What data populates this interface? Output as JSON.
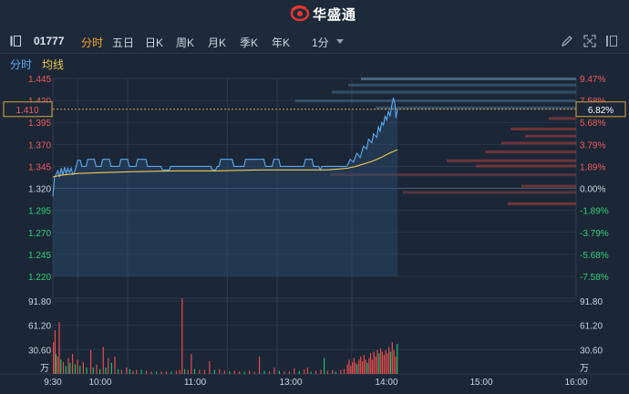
{
  "header": {
    "brand_name": "华盛通",
    "brand_color": "#e8382f"
  },
  "toolbar": {
    "stock_code": "01777",
    "tabs": [
      {
        "label": "分时",
        "active": true
      },
      {
        "label": "五日",
        "active": false
      },
      {
        "label": "日K",
        "active": false
      },
      {
        "label": "周K",
        "active": false
      },
      {
        "label": "月K",
        "active": false
      },
      {
        "label": "季K",
        "active": false
      },
      {
        "label": "年K",
        "active": false
      }
    ],
    "interval": "1分",
    "icons": [
      "collapse-panel-icon",
      "pencil-icon",
      "expand-icon",
      "fullscreen-icon"
    ]
  },
  "legend": {
    "price_label": "分时",
    "avg_label": "均线",
    "price_color": "#5aa9f0",
    "avg_color": "#f2c94c"
  },
  "chart_data": {
    "type": "line",
    "price_axis": {
      "ticks": [
        "1.445",
        "1.420",
        "1.395",
        "1.370",
        "1.345",
        "1.320",
        "1.295",
        "1.270",
        "1.245",
        "1.220"
      ],
      "ylim": [
        1.22,
        1.445
      ],
      "prev_close": 1.32
    },
    "pct_axis": {
      "ticks": [
        "9.47%",
        "7.58%",
        "5.68%",
        "3.79%",
        "1.89%",
        "0.00%",
        "-1.89%",
        "-3.79%",
        "-5.68%",
        "-7.58%"
      ]
    },
    "current": {
      "price": "1.410",
      "pct": "6.82%"
    },
    "time_ticks": [
      "9:30",
      "10:00",
      "11:00",
      "13:00",
      "14:00",
      "15:00",
      "16:00"
    ],
    "price_series": {
      "name": "分时",
      "points": [
        [
          0,
          1.311
        ],
        [
          2,
          1.333
        ],
        [
          4,
          1.336
        ],
        [
          6,
          1.34
        ],
        [
          8,
          1.333
        ],
        [
          10,
          1.343
        ],
        [
          12,
          1.335
        ],
        [
          14,
          1.344
        ],
        [
          16,
          1.337
        ],
        [
          18,
          1.343
        ],
        [
          20,
          1.338
        ],
        [
          22,
          1.343
        ],
        [
          24,
          1.336
        ],
        [
          26,
          1.338
        ],
        [
          28,
          1.345
        ],
        [
          30,
          1.352
        ],
        [
          33,
          1.352
        ],
        [
          35,
          1.345
        ],
        [
          40,
          1.345
        ],
        [
          42,
          1.353
        ],
        [
          50,
          1.353
        ],
        [
          52,
          1.345
        ],
        [
          58,
          1.345
        ],
        [
          60,
          1.353
        ],
        [
          68,
          1.353
        ],
        [
          70,
          1.345
        ],
        [
          80,
          1.345
        ],
        [
          82,
          1.353
        ],
        [
          90,
          1.353
        ],
        [
          92,
          1.345
        ],
        [
          100,
          1.345
        ],
        [
          102,
          1.353
        ],
        [
          112,
          1.353
        ],
        [
          114,
          1.345
        ],
        [
          130,
          1.345
        ],
        [
          132,
          1.341
        ],
        [
          140,
          1.341
        ],
        [
          142,
          1.345
        ],
        [
          190,
          1.345
        ],
        [
          192,
          1.341
        ],
        [
          196,
          1.341
        ],
        [
          198,
          1.345
        ],
        [
          200,
          1.345
        ],
        [
          202,
          1.353
        ],
        [
          216,
          1.353
        ],
        [
          218,
          1.345
        ],
        [
          230,
          1.345
        ],
        [
          232,
          1.353
        ],
        [
          254,
          1.353
        ],
        [
          256,
          1.345
        ],
        [
          264,
          1.345
        ],
        [
          266,
          1.353
        ],
        [
          272,
          1.353
        ],
        [
          274,
          1.345
        ],
        [
          302,
          1.345
        ],
        [
          304,
          1.353
        ],
        [
          312,
          1.353
        ],
        [
          314,
          1.345
        ],
        [
          320,
          1.345
        ],
        [
          322,
          1.341
        ],
        [
          324,
          1.345
        ],
        [
          350,
          1.345
        ],
        [
          354,
          1.345
        ],
        [
          358,
          1.353
        ],
        [
          362,
          1.35
        ],
        [
          366,
          1.36
        ],
        [
          370,
          1.355
        ],
        [
          374,
          1.368
        ],
        [
          378,
          1.365
        ],
        [
          380,
          1.376
        ],
        [
          384,
          1.372
        ],
        [
          386,
          1.382
        ],
        [
          390,
          1.378
        ],
        [
          392,
          1.39
        ],
        [
          394,
          1.385
        ],
        [
          396,
          1.395
        ],
        [
          398,
          1.392
        ],
        [
          400,
          1.402
        ],
        [
          402,
          1.398
        ],
        [
          404,
          1.408
        ],
        [
          406,
          1.402
        ],
        [
          408,
          1.414
        ],
        [
          410,
          1.423
        ],
        [
          412,
          1.415
        ],
        [
          413,
          1.4
        ],
        [
          414,
          1.405
        ],
        [
          415,
          1.41
        ]
      ]
    },
    "avg_series": {
      "name": "均线",
      "points": [
        [
          0,
          1.333
        ],
        [
          10,
          1.335
        ],
        [
          30,
          1.337
        ],
        [
          60,
          1.338
        ],
        [
          100,
          1.339
        ],
        [
          150,
          1.34
        ],
        [
          200,
          1.34
        ],
        [
          250,
          1.341
        ],
        [
          300,
          1.341
        ],
        [
          330,
          1.341
        ],
        [
          345,
          1.342
        ],
        [
          355,
          1.343
        ],
        [
          365,
          1.345
        ],
        [
          375,
          1.348
        ],
        [
          385,
          1.351
        ],
        [
          395,
          1.355
        ],
        [
          405,
          1.36
        ],
        [
          415,
          1.364
        ]
      ]
    },
    "volume_axis": {
      "ticks": [
        "91.80",
        "61.20",
        "30.60"
      ],
      "unit": "万",
      "ylim": [
        0,
        91.8
      ]
    },
    "volume_series": [
      [
        0,
        40,
        "u"
      ],
      [
        2,
        55,
        "u"
      ],
      [
        3,
        25,
        "d"
      ],
      [
        5,
        22,
        "u"
      ],
      [
        7,
        65,
        "u"
      ],
      [
        9,
        18,
        "d"
      ],
      [
        12,
        15,
        "u"
      ],
      [
        15,
        10,
        "d"
      ],
      [
        18,
        20,
        "u"
      ],
      [
        20,
        14,
        "d"
      ],
      [
        23,
        25,
        "u"
      ],
      [
        26,
        12,
        "d"
      ],
      [
        29,
        18,
        "u"
      ],
      [
        32,
        10,
        "d"
      ],
      [
        36,
        15,
        "u"
      ],
      [
        40,
        8,
        "d"
      ],
      [
        45,
        30,
        "u"
      ],
      [
        48,
        8,
        "d"
      ],
      [
        52,
        12,
        "u"
      ],
      [
        56,
        6,
        "d"
      ],
      [
        60,
        34,
        "u"
      ],
      [
        63,
        8,
        "d"
      ],
      [
        66,
        20,
        "u"
      ],
      [
        70,
        14,
        "d"
      ],
      [
        74,
        22,
        "u"
      ],
      [
        78,
        6,
        "d"
      ],
      [
        82,
        5,
        "u"
      ],
      [
        88,
        8,
        "u"
      ],
      [
        92,
        6,
        "d"
      ],
      [
        96,
        4,
        "u"
      ],
      [
        100,
        5,
        "u"
      ],
      [
        106,
        5,
        "d"
      ],
      [
        112,
        4,
        "u"
      ],
      [
        118,
        3,
        "u"
      ],
      [
        124,
        3,
        "d"
      ],
      [
        130,
        3,
        "u"
      ],
      [
        136,
        3,
        "u"
      ],
      [
        142,
        3,
        "d"
      ],
      [
        148,
        4,
        "u"
      ],
      [
        152,
        5,
        "u"
      ],
      [
        155,
        95,
        "u"
      ],
      [
        158,
        6,
        "d"
      ],
      [
        162,
        5,
        "u"
      ],
      [
        166,
        25,
        "u"
      ],
      [
        170,
        6,
        "d"
      ],
      [
        176,
        5,
        "u"
      ],
      [
        182,
        5,
        "u"
      ],
      [
        188,
        16,
        "u"
      ],
      [
        194,
        5,
        "d"
      ],
      [
        200,
        6,
        "u"
      ],
      [
        206,
        4,
        "u"
      ],
      [
        212,
        3,
        "d"
      ],
      [
        218,
        4,
        "u"
      ],
      [
        224,
        3,
        "u"
      ],
      [
        230,
        3,
        "d"
      ],
      [
        236,
        4,
        "u"
      ],
      [
        242,
        3,
        "u"
      ],
      [
        248,
        22,
        "u"
      ],
      [
        254,
        4,
        "d"
      ],
      [
        260,
        3,
        "u"
      ],
      [
        266,
        8,
        "u"
      ],
      [
        272,
        4,
        "d"
      ],
      [
        278,
        3,
        "u"
      ],
      [
        284,
        3,
        "u"
      ],
      [
        290,
        7,
        "u"
      ],
      [
        296,
        4,
        "d"
      ],
      [
        302,
        6,
        "u"
      ],
      [
        306,
        8,
        "u"
      ],
      [
        310,
        3,
        "d"
      ],
      [
        316,
        4,
        "u"
      ],
      [
        322,
        5,
        "u"
      ],
      [
        326,
        20,
        "d"
      ],
      [
        330,
        4,
        "u"
      ],
      [
        336,
        5,
        "u"
      ],
      [
        340,
        3,
        "d"
      ],
      [
        346,
        5,
        "u"
      ],
      [
        350,
        6,
        "u"
      ],
      [
        354,
        12,
        "u"
      ],
      [
        356,
        18,
        "u"
      ],
      [
        358,
        10,
        "u"
      ],
      [
        360,
        15,
        "u"
      ],
      [
        362,
        20,
        "u"
      ],
      [
        364,
        14,
        "u"
      ],
      [
        366,
        12,
        "d"
      ],
      [
        368,
        18,
        "u"
      ],
      [
        370,
        22,
        "u"
      ],
      [
        372,
        16,
        "u"
      ],
      [
        374,
        24,
        "u"
      ],
      [
        376,
        18,
        "u"
      ],
      [
        378,
        14,
        "d"
      ],
      [
        380,
        20,
        "u"
      ],
      [
        382,
        26,
        "u"
      ],
      [
        384,
        18,
        "u"
      ],
      [
        386,
        28,
        "u"
      ],
      [
        388,
        22,
        "u"
      ],
      [
        390,
        30,
        "u"
      ],
      [
        392,
        26,
        "d"
      ],
      [
        394,
        32,
        "u"
      ],
      [
        396,
        28,
        "u"
      ],
      [
        398,
        24,
        "u"
      ],
      [
        400,
        30,
        "u"
      ],
      [
        402,
        26,
        "u"
      ],
      [
        404,
        34,
        "u"
      ],
      [
        406,
        28,
        "d"
      ],
      [
        408,
        40,
        "u"
      ],
      [
        410,
        30,
        "u"
      ],
      [
        412,
        22,
        "u"
      ],
      [
        414,
        38,
        "d"
      ]
    ],
    "colors": {
      "up": "#e84b4b",
      "down": "#1fbf6b",
      "price_line": "#5aa9f0",
      "avg_line": "#f2c94c",
      "grid": "#2c3a4c"
    }
  }
}
